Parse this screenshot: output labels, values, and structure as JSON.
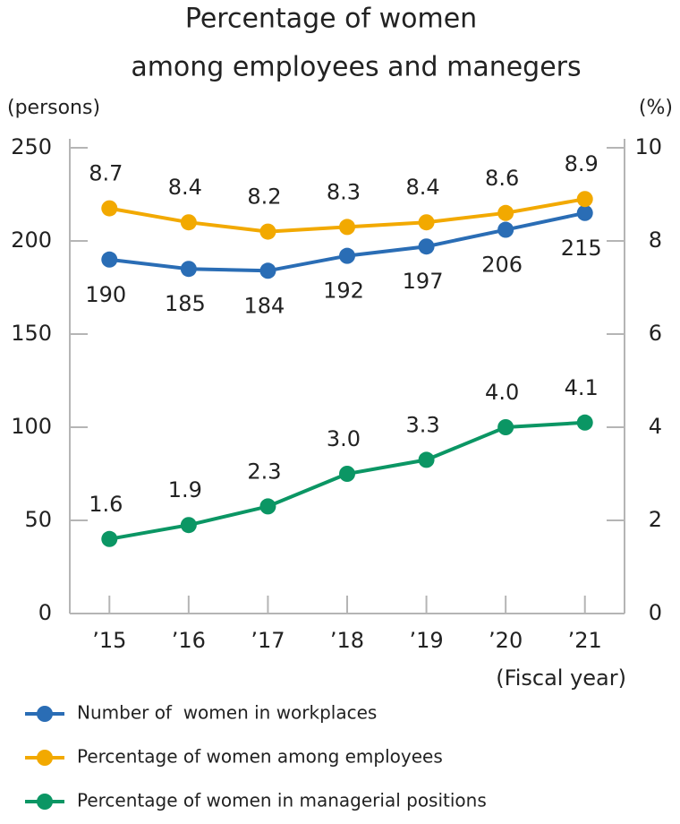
{
  "chart_data": {
    "type": "line",
    "title": [
      "Percentage of women",
      "among employees and manegers"
    ],
    "y_label": "(persons)",
    "y2_label": "(%)",
    "x_label": "(Fiscal year)",
    "categories": [
      "’15",
      "’16",
      "’17",
      "’18",
      "’19",
      "’20",
      "’21"
    ],
    "series": [
      {
        "name": "Number of  women in workplaces",
        "color": "#2a6db5",
        "values": [
          190,
          185,
          184,
          192,
          197,
          206,
          215
        ]
      },
      {
        "name": "Percentage of women among employees",
        "color": "#f2a900",
        "axis": "y2",
        "values": [
          8.7,
          8.4,
          8.2,
          8.3,
          8.4,
          8.6,
          8.9
        ]
      },
      {
        "name": "Percentage of women in managerial positions",
        "color": "#0b9664",
        "axis": "y2",
        "values": [
          1.6,
          1.9,
          2.3,
          3.0,
          3.3,
          4.0,
          4.1
        ],
        "value_labels": [
          "1.6",
          "1.9",
          "2.3",
          "3.0",
          "3.3",
          "4.0",
          "4.1"
        ]
      }
    ],
    "ylim": [
      0,
      250
    ],
    "yticks": [
      0,
      50,
      100,
      150,
      200,
      250
    ],
    "y2lim": [
      0,
      10
    ],
    "y2ticks": [
      0,
      2,
      4,
      6,
      8,
      10
    ],
    "grid": false,
    "legend": "bottom"
  }
}
